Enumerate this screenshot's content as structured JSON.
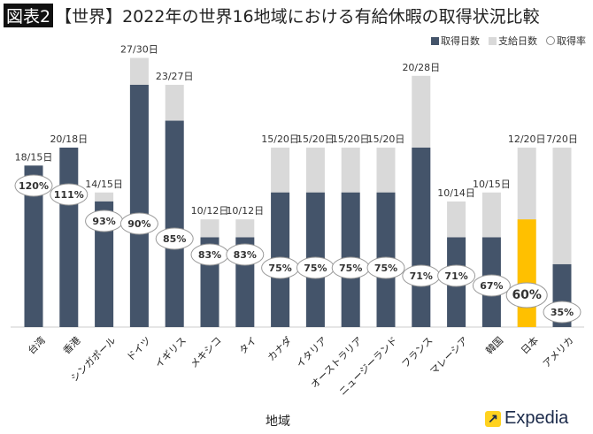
{
  "title_tag": "図表2",
  "title": "【世界】2022年の世界16地域における有給休暇の取得状況比較",
  "chart_data": {
    "type": "bar",
    "xlabel": "地域",
    "ylabel": "",
    "ylim": [
      0,
      30
    ],
    "grid": false,
    "legend_position": "top-right",
    "unit_suffix": "日",
    "categories": [
      "台湾",
      "香港",
      "シンガポール",
      "ドイツ",
      "イギリス",
      "メキシコ",
      "タイ",
      "カナダ",
      "イタリア",
      "オーストラリア",
      "ニュージーランド",
      "フランス",
      "マレーシア",
      "韓国",
      "日本",
      "アメリカ"
    ],
    "series": [
      {
        "name": "取得日数",
        "color": "#44546a",
        "values": [
          18,
          20,
          14,
          27,
          23,
          10,
          10,
          15,
          15,
          15,
          15,
          20,
          10,
          10,
          12,
          7
        ]
      },
      {
        "name": "支給日数",
        "color": "#d9d9d9",
        "values": [
          15,
          18,
          15,
          30,
          27,
          12,
          12,
          20,
          20,
          20,
          20,
          28,
          14,
          15,
          20,
          20
        ]
      },
      {
        "name": "取得率",
        "values": [
          "120%",
          "111%",
          "93%",
          "90%",
          "85%",
          "83%",
          "83%",
          "75%",
          "75%",
          "75%",
          "75%",
          "71%",
          "71%",
          "67%",
          "60%",
          "35%"
        ]
      }
    ],
    "highlight": {
      "category": "日本",
      "color": "#ffc000"
    }
  },
  "logo": "Expedia"
}
